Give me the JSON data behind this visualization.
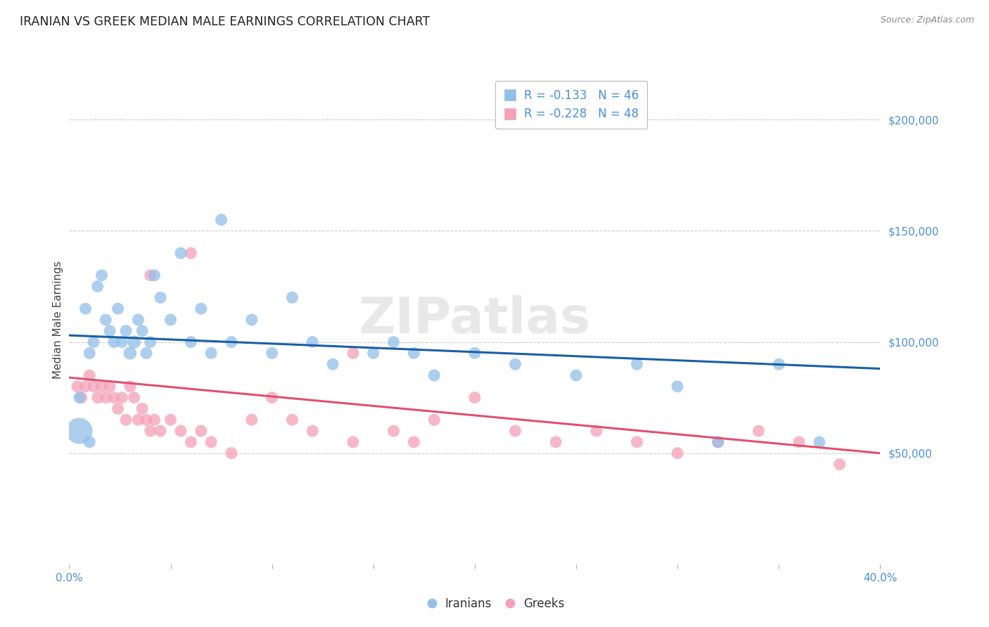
{
  "title": "IRANIAN VS GREEK MEDIAN MALE EARNINGS CORRELATION CHART",
  "source_text": "Source: ZipAtlas.com",
  "ylabel": "Median Male Earnings",
  "xlim": [
    0.0,
    0.4
  ],
  "ylim": [
    0,
    220000
  ],
  "yticks": [
    0,
    50000,
    100000,
    150000,
    200000
  ],
  "ytick_labels": [
    "",
    "$50,000",
    "$100,000",
    "$150,000",
    "$200,000"
  ],
  "background_color": "#ffffff",
  "watermark_text": "ZIPatlas",
  "legend_r_iranian": "-0.133",
  "legend_n_iranian": "46",
  "legend_r_greek": "-0.228",
  "legend_n_greek": "48",
  "iranian_color": "#92c0e8",
  "greek_color": "#f4a0b8",
  "iranian_line_color": "#1a5fa8",
  "greek_line_color": "#e05070",
  "iranian_x": [
    0.005,
    0.008,
    0.01,
    0.012,
    0.014,
    0.016,
    0.018,
    0.02,
    0.022,
    0.024,
    0.026,
    0.028,
    0.03,
    0.032,
    0.034,
    0.036,
    0.038,
    0.04,
    0.042,
    0.045,
    0.05,
    0.055,
    0.06,
    0.065,
    0.07,
    0.075,
    0.08,
    0.09,
    0.1,
    0.11,
    0.12,
    0.13,
    0.15,
    0.16,
    0.17,
    0.18,
    0.2,
    0.22,
    0.25,
    0.28,
    0.3,
    0.32,
    0.35,
    0.37,
    0.005,
    0.01
  ],
  "iranian_y": [
    75000,
    115000,
    95000,
    100000,
    125000,
    130000,
    110000,
    105000,
    100000,
    115000,
    100000,
    105000,
    95000,
    100000,
    110000,
    105000,
    95000,
    100000,
    130000,
    120000,
    110000,
    140000,
    100000,
    115000,
    95000,
    155000,
    100000,
    110000,
    95000,
    120000,
    100000,
    90000,
    95000,
    100000,
    95000,
    85000,
    95000,
    90000,
    85000,
    90000,
    80000,
    55000,
    90000,
    55000,
    60000,
    55000
  ],
  "greek_x": [
    0.004,
    0.006,
    0.008,
    0.01,
    0.012,
    0.014,
    0.016,
    0.018,
    0.02,
    0.022,
    0.024,
    0.026,
    0.028,
    0.03,
    0.032,
    0.034,
    0.036,
    0.038,
    0.04,
    0.042,
    0.045,
    0.05,
    0.055,
    0.06,
    0.065,
    0.07,
    0.08,
    0.09,
    0.1,
    0.11,
    0.12,
    0.14,
    0.16,
    0.18,
    0.2,
    0.22,
    0.24,
    0.26,
    0.28,
    0.3,
    0.32,
    0.34,
    0.36,
    0.38,
    0.04,
    0.06,
    0.14,
    0.17
  ],
  "greek_y": [
    80000,
    75000,
    80000,
    85000,
    80000,
    75000,
    80000,
    75000,
    80000,
    75000,
    70000,
    75000,
    65000,
    80000,
    75000,
    65000,
    70000,
    65000,
    60000,
    65000,
    60000,
    65000,
    60000,
    55000,
    60000,
    55000,
    50000,
    65000,
    75000,
    65000,
    60000,
    55000,
    60000,
    65000,
    75000,
    60000,
    55000,
    60000,
    55000,
    50000,
    55000,
    60000,
    55000,
    45000,
    130000,
    140000,
    95000,
    55000
  ],
  "iranian_sizes_raw": [
    25,
    25,
    25,
    25,
    25,
    25,
    25,
    25,
    25,
    25,
    25,
    25,
    30,
    30,
    25,
    25,
    25,
    25,
    25,
    25,
    25,
    25,
    25,
    25,
    25,
    25,
    25,
    25,
    25,
    25,
    25,
    25,
    25,
    25,
    25,
    25,
    25,
    25,
    25,
    25,
    25,
    25,
    25,
    25,
    120,
    25
  ],
  "greek_sizes_raw": [
    25,
    25,
    25,
    25,
    25,
    25,
    25,
    25,
    25,
    25,
    25,
    25,
    25,
    25,
    25,
    25,
    25,
    25,
    25,
    25,
    25,
    25,
    25,
    25,
    25,
    25,
    25,
    25,
    25,
    25,
    25,
    25,
    25,
    25,
    25,
    25,
    25,
    25,
    25,
    25,
    25,
    25,
    25,
    25,
    25,
    25,
    25,
    25
  ]
}
